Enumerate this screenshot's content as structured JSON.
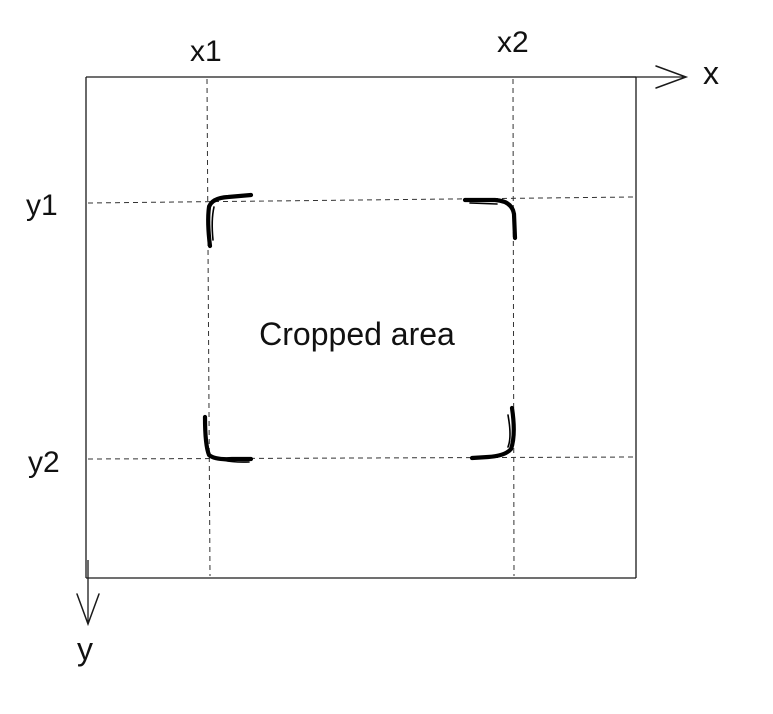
{
  "labels": {
    "x_axis": "x",
    "y_axis": "y",
    "x1": "x1",
    "x2": "x2",
    "y1": "y1",
    "y2": "y2",
    "region": "Cropped area"
  },
  "colors": {
    "ink": "#111111",
    "background": "#ffffff"
  },
  "icons": {
    "x_arrow": "arrow-right-icon",
    "y_arrow": "arrow-down-icon"
  }
}
